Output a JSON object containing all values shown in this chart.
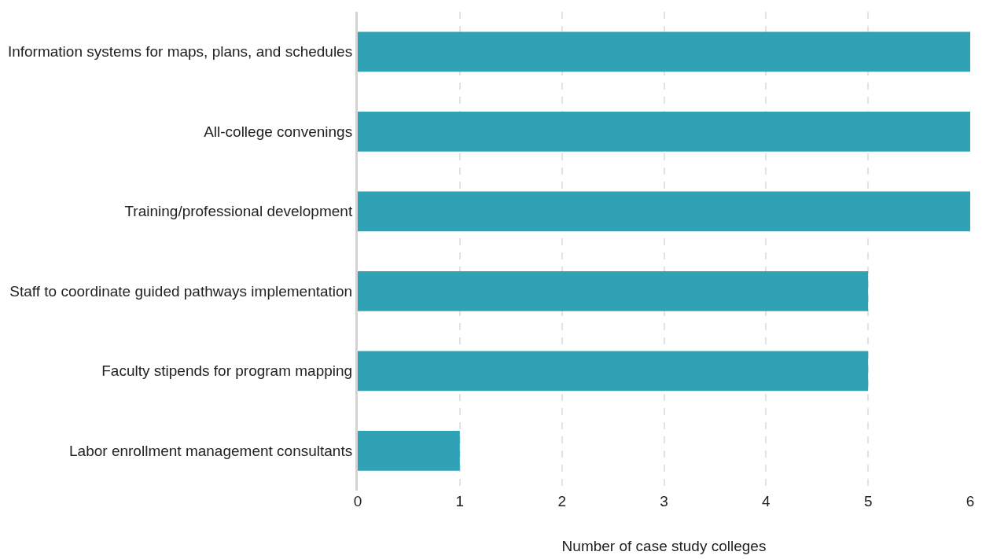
{
  "chart_data": {
    "type": "bar",
    "orientation": "horizontal",
    "xlabel": "Number of case study colleges",
    "categories": [
      "Information systems for maps, plans, and schedules",
      "All-college convenings",
      "Training/professional development",
      "Staff to coordinate guided pathways implementation",
      "Faculty stipends for program mapping",
      "Labor enrollment management consultants"
    ],
    "values": [
      6,
      6,
      6,
      5,
      5,
      1
    ],
    "color": "#2fa3b5",
    "xlim": [
      0,
      6
    ],
    "xticks": [
      0,
      1,
      2,
      3,
      4,
      5,
      6
    ],
    "grid": "x",
    "legend": false
  }
}
